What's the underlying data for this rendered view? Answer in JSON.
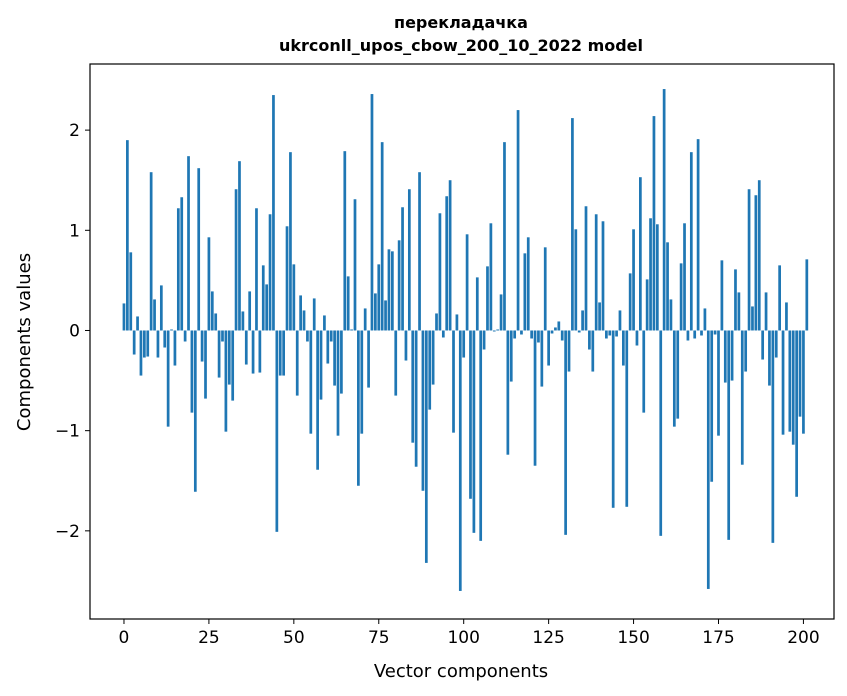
{
  "chart_data": {
    "type": "bar",
    "title_line1": "перекладачка",
    "title_line2": "ukrconll_upos_cbow_200_10_2022 model",
    "xlabel": "Vector components",
    "ylabel": "Components values",
    "xlim": [
      -10,
      209
    ],
    "ylim": [
      -2.88,
      2.66
    ],
    "xticks": [
      0,
      25,
      50,
      75,
      100,
      125,
      150,
      175,
      200
    ],
    "xtick_labels": [
      "0",
      "25",
      "50",
      "75",
      "100",
      "125",
      "150",
      "175",
      "200"
    ],
    "yticks": [
      -2,
      -1,
      0,
      1,
      2
    ],
    "ytick_labels": [
      "−2",
      "−1",
      "0",
      "1",
      "2"
    ],
    "bar_color": "#1f77b4",
    "values": [
      0.27,
      1.9,
      0.78,
      -0.24,
      0.14,
      -0.45,
      -0.27,
      -0.26,
      1.58,
      0.31,
      -0.27,
      0.45,
      -0.17,
      -0.96,
      0.01,
      -0.35,
      1.22,
      1.33,
      -0.11,
      1.74,
      -0.82,
      -1.61,
      1.62,
      -0.31,
      -0.68,
      0.93,
      0.39,
      0.17,
      -0.47,
      -0.11,
      -1.01,
      -0.54,
      -0.7,
      1.41,
      1.69,
      0.19,
      -0.34,
      0.39,
      -0.43,
      1.22,
      -0.42,
      0.65,
      0.46,
      1.16,
      2.35,
      -2.01,
      -0.45,
      -0.45,
      1.04,
      1.78,
      0.66,
      -0.65,
      0.35,
      0.2,
      -0.11,
      -1.03,
      0.32,
      -1.39,
      -0.69,
      0.15,
      -0.33,
      -0.11,
      -0.55,
      -1.05,
      -0.63,
      1.79,
      0.54,
      0.01,
      1.31,
      -1.55,
      -1.03,
      0.22,
      -0.57,
      2.36,
      0.37,
      0.66,
      1.88,
      0.3,
      0.81,
      0.79,
      -0.65,
      0.9,
      1.23,
      -0.3,
      1.41,
      -1.12,
      -1.36,
      1.58,
      -1.6,
      -2.32,
      -0.79,
      -0.54,
      0.17,
      1.17,
      -0.07,
      1.34,
      1.5,
      -1.02,
      0.16,
      -2.6,
      -0.27,
      0.96,
      -1.68,
      -2.02,
      0.53,
      -2.1,
      -0.19,
      0.64,
      1.07,
      -0.01,
      0.01,
      0.36,
      1.88,
      -1.24,
      -0.51,
      -0.08,
      2.2,
      -0.04,
      0.77,
      0.93,
      -0.08,
      -1.35,
      -0.12,
      -0.56,
      0.83,
      -0.35,
      -0.03,
      0.03,
      0.09,
      -0.1,
      -2.04,
      -0.41,
      2.12,
      1.01,
      -0.02,
      0.2,
      1.24,
      -0.19,
      -0.41,
      1.16,
      0.28,
      1.09,
      -0.08,
      -0.05,
      -1.77,
      -0.06,
      0.2,
      -0.35,
      -1.76,
      0.57,
      1.01,
      -0.15,
      1.53,
      -0.82,
      0.51,
      1.12,
      2.14,
      1.06,
      -2.05,
      2.41,
      0.88,
      0.31,
      -0.96,
      -0.88,
      0.67,
      1.07,
      -0.1,
      1.78,
      -0.08,
      1.91,
      -0.05,
      0.22,
      -2.58,
      -1.51,
      -0.04,
      -1.05,
      0.7,
      -0.52,
      -2.09,
      -0.5,
      0.61,
      0.38,
      -1.34,
      -0.41,
      1.41,
      0.24,
      1.35,
      1.5,
      -0.29,
      0.38,
      -0.55,
      -2.12,
      -0.27,
      0.65,
      -1.04,
      0.28,
      -1.01,
      -1.14,
      -1.66,
      -0.86,
      -1.03,
      0.71
    ]
  }
}
